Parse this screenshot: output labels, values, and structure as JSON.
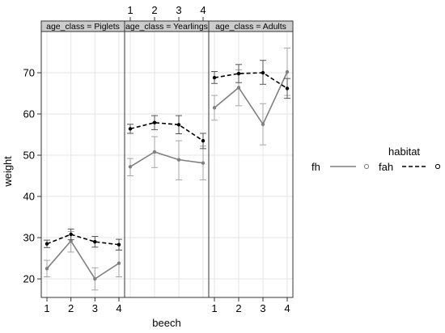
{
  "chart_data": {
    "type": "line",
    "ylabel": "weight",
    "xlabel": "beech",
    "x": [
      1,
      2,
      3,
      4
    ],
    "x_tick_labels": [
      "1",
      "2",
      "3",
      "4"
    ],
    "ylim": [
      15.5,
      80
    ],
    "y_ticks": [
      20,
      30,
      40,
      50,
      60,
      70
    ],
    "grid": true,
    "legend_title": "habitat",
    "legend_position": "right",
    "panels": [
      {
        "strip": "age_class = Piglets",
        "series": [
          {
            "name": "fh",
            "line": "solid",
            "color": "#808080",
            "values": [
              22.5,
              29.2,
              20.0,
              23.8
            ],
            "lower": [
              20.5,
              26.5,
              17.3,
              20.5
            ],
            "upper": [
              24.5,
              31.5,
              22.7,
              27.0
            ]
          },
          {
            "name": "fah",
            "line": "dashed",
            "color": "#000000",
            "values": [
              28.5,
              30.8,
              29.0,
              28.3
            ],
            "lower": [
              27.6,
              29.5,
              27.7,
              27.0
            ],
            "upper": [
              29.4,
              32.1,
              30.3,
              29.6
            ]
          }
        ]
      },
      {
        "strip": "age_class = Yearlings",
        "series": [
          {
            "name": "fh",
            "line": "solid",
            "color": "#808080",
            "values": [
              47.2,
              50.8,
              48.9,
              48.1
            ],
            "lower": [
              45.0,
              47.0,
              44.0,
              44.0
            ],
            "upper": [
              49.2,
              54.5,
              53.5,
              52.2
            ]
          },
          {
            "name": "fah",
            "line": "dashed",
            "color": "#000000",
            "values": [
              56.4,
              57.9,
              57.4,
              53.5
            ],
            "lower": [
              55.3,
              56.2,
              55.2,
              51.6
            ],
            "upper": [
              57.5,
              59.6,
              59.6,
              55.3
            ]
          }
        ]
      },
      {
        "strip": "age_class = Adults",
        "series": [
          {
            "name": "fh",
            "line": "solid",
            "color": "#808080",
            "values": [
              61.5,
              66.4,
              57.5,
              70.2
            ],
            "lower": [
              58.5,
              62.0,
              52.5,
              64.5
            ],
            "upper": [
              64.5,
              70.7,
              62.5,
              76.0
            ]
          },
          {
            "name": "fah",
            "line": "dashed",
            "color": "#000000",
            "values": [
              68.8,
              69.8,
              70.0,
              66.2
            ],
            "lower": [
              67.4,
              67.6,
              67.2,
              63.8
            ],
            "upper": [
              70.3,
              72.0,
              73.0,
              68.6
            ]
          }
        ]
      }
    ]
  }
}
